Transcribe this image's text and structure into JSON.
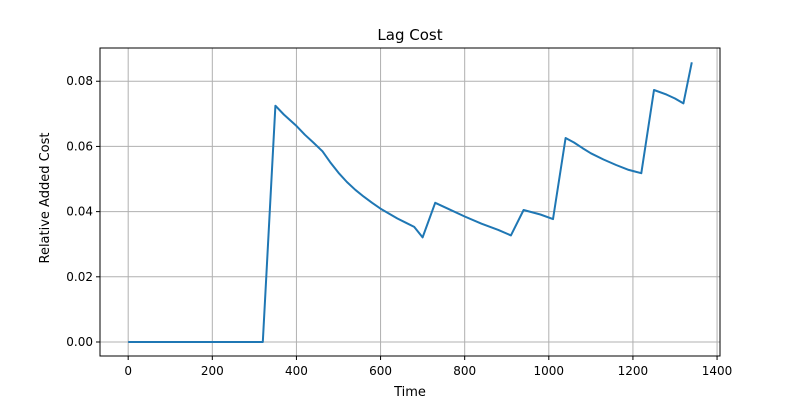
{
  "chart_data": {
    "type": "line",
    "title": "Lag Cost",
    "xlabel": "Time",
    "ylabel": "Relative Added Cost",
    "xlim": [
      -67,
      1407
    ],
    "ylim": [
      -0.0043,
      0.0902
    ],
    "grid": true,
    "xticks": [
      0,
      200,
      400,
      600,
      800,
      1000,
      1200,
      1400
    ],
    "xtick_labels": [
      "0",
      "200",
      "400",
      "600",
      "800",
      "1000",
      "1200",
      "1400"
    ],
    "yticks": [
      0.0,
      0.02,
      0.04,
      0.06,
      0.08
    ],
    "ytick_labels": [
      "0.00",
      "0.02",
      "0.04",
      "0.06",
      "0.08"
    ],
    "series": [
      {
        "color": "#1f77b4",
        "x": [
          0,
          320,
          350,
          370,
          400,
          420,
          440,
          462,
          480,
          500,
          520,
          540,
          560,
          580,
          600,
          620,
          640,
          660,
          680,
          700,
          730,
          760,
          800,
          840,
          880,
          910,
          940,
          980,
          1010,
          1040,
          1060,
          1080,
          1100,
          1130,
          1160,
          1190,
          1220,
          1250,
          1280,
          1300,
          1320,
          1340
        ],
        "y": [
          0.0,
          0.0,
          0.0725,
          0.0698,
          0.0663,
          0.0636,
          0.0612,
          0.0585,
          0.0552,
          0.0519,
          0.0491,
          0.0467,
          0.0446,
          0.0427,
          0.0409,
          0.0394,
          0.0379,
          0.0366,
          0.0353,
          0.0321,
          0.0427,
          0.0409,
          0.0385,
          0.0363,
          0.0344,
          0.0327,
          0.0405,
          0.0391,
          0.0377,
          0.0626,
          0.0612,
          0.0595,
          0.0579,
          0.056,
          0.0543,
          0.0528,
          0.0518,
          0.0773,
          0.0759,
          0.0747,
          0.0732,
          0.0858
        ]
      }
    ]
  }
}
